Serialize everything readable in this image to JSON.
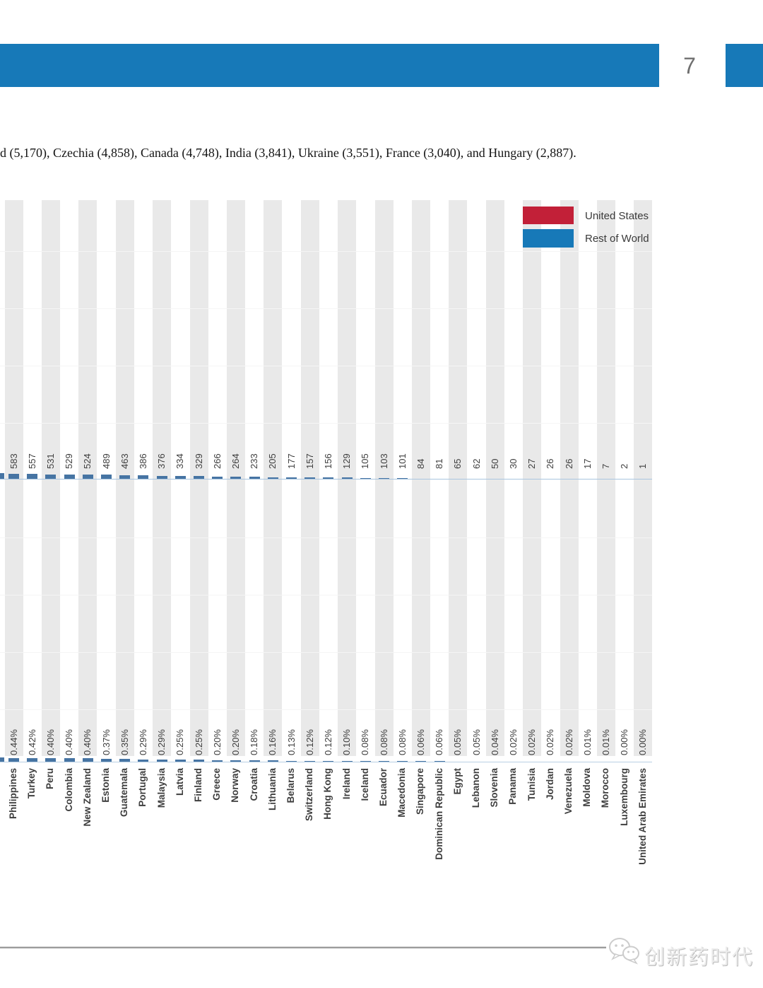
{
  "page": {
    "number": "7",
    "intro_text_fragment": "d (5,170), Czechia (4,858), Canada (4,748), India (3,841), Ukraine (3,551), France (3,040), and Hungary (2,887).",
    "footer_watermark": "创新药时代"
  },
  "colors": {
    "banner_blue": "#1779b8",
    "legend_red": "#c22038",
    "legend_blue": "#1779b8",
    "bar_blue": "#4674a3",
    "count_axisline": "#a9c6e0",
    "percent_axisline": "#b9cfe3",
    "band_gray": "#e9e9e9"
  },
  "legend": {
    "items": [
      {
        "label": "United States",
        "color": "#c22038"
      },
      {
        "label": "Rest of World",
        "color": "#1779b8"
      }
    ]
  },
  "chart_data": {
    "type": "bar",
    "orientation": "page rotated 90deg; horizontal bar chart pair (counts and % share) with country rows, left portion of figure cropped off-page",
    "legend_entries": [
      "United States",
      "Rest of World"
    ],
    "legend_position": "top-right of plot",
    "grid": "faint value gridlines over alternating gray row bands",
    "categories": [
      "Philippines",
      "Turkey",
      "Peru",
      "Colombia",
      "New Zealand",
      "Estonia",
      "Guatemala",
      "Portugal",
      "Malaysia",
      "Latvia",
      "Finland",
      "Greece",
      "Norway",
      "Croatia",
      "Lithuania",
      "Belarus",
      "Switzerland",
      "Hong Kong",
      "Ireland",
      "Iceland",
      "Ecuador",
      "Macedonia",
      "Singapore",
      "Dominican Republic",
      "Egypt",
      "Lebanon",
      "Slovenia",
      "Panama",
      "Tunisia",
      "Jordan",
      "Venezuela",
      "Moldova",
      "Morocco",
      "Luxembourg",
      "United Arab Emirates"
    ],
    "series": [
      {
        "name": "count",
        "values": [
          583,
          557,
          531,
          529,
          524,
          489,
          463,
          386,
          376,
          334,
          329,
          266,
          264,
          233,
          205,
          177,
          157,
          156,
          129,
          105,
          103,
          101,
          84,
          81,
          65,
          62,
          50,
          30,
          27,
          26,
          26,
          17,
          7,
          2,
          1
        ]
      },
      {
        "name": "percent_share",
        "value_labels": [
          "0.44%",
          "0.42%",
          "0.40%",
          "0.40%",
          "0.40%",
          "0.37%",
          "0.35%",
          "0.29%",
          "0.29%",
          "0.25%",
          "0.25%",
          "0.20%",
          "0.20%",
          "0.18%",
          "0.16%",
          "0.13%",
          "0.12%",
          "0.12%",
          "0.10%",
          "0.08%",
          "0.08%",
          "0.08%",
          "0.06%",
          "0.06%",
          "0.05%",
          "0.05%",
          "0.04%",
          "0.02%",
          "0.02%",
          "0.02%",
          "0.02%",
          "0.01%",
          "0.01%",
          "0.00%",
          "0.00%"
        ]
      }
    ],
    "cropped_partial_bar_at_left_edge": true
  }
}
